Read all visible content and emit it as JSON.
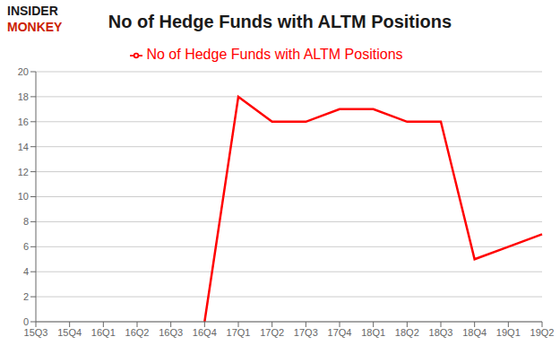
{
  "chart_data": {
    "type": "line",
    "title": "No of Hedge Funds with ALTM Positions",
    "categories": [
      "15Q3",
      "15Q4",
      "16Q1",
      "16Q2",
      "16Q3",
      "16Q4",
      "17Q1",
      "17Q2",
      "17Q3",
      "17Q4",
      "18Q1",
      "18Q2",
      "18Q3",
      "18Q4",
      "19Q1",
      "19Q2"
    ],
    "series": [
      {
        "name": "No of Hedge Funds with ALTM Positions",
        "color": "#ff0000",
        "values": [
          null,
          null,
          null,
          null,
          null,
          0,
          18,
          16,
          16,
          17,
          17,
          16,
          16,
          5,
          6,
          7
        ]
      }
    ],
    "ylim": [
      0,
      20
    ],
    "yticks": [
      0,
      2,
      4,
      6,
      8,
      10,
      12,
      14,
      16,
      18,
      20
    ],
    "grid": true,
    "legend": "upper center",
    "annotations": [
      {
        "text": "INSIDER",
        "color": "#1a1a1a"
      },
      {
        "text": "MONKEY",
        "color": "#cc2200"
      }
    ]
  }
}
